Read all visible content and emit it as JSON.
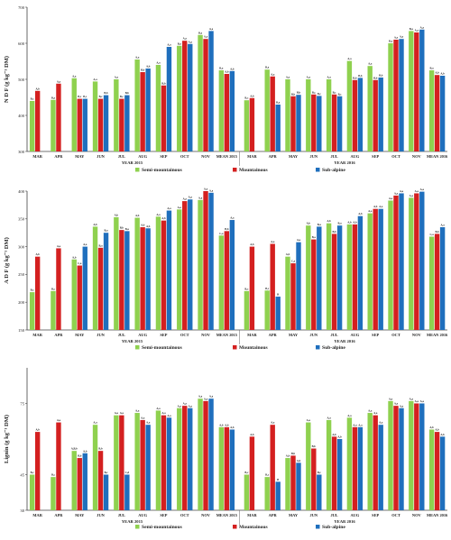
{
  "colors": {
    "semi": "#8fd14f",
    "mount": "#d42020",
    "sub": "#1f6fbd"
  },
  "legend": [
    {
      "name": "Semi-mountainous",
      "color": "#8fd14f"
    },
    {
      "name": "Mountainous",
      "color": "#d42020"
    },
    {
      "name": "Sub-alpine",
      "color": "#1f6fbd"
    }
  ],
  "chart_data": [
    {
      "type": "bar",
      "ylabel": "N D F  (g kg⁻¹ DM)",
      "ylim": [
        300,
        700
      ],
      "yticks": [
        300,
        400,
        500,
        600,
        700
      ],
      "groups": [
        {
          "label": "YEAR 2015",
          "categories": [
            "MAR",
            "APR",
            "MAY",
            "JUN",
            "JUL",
            "AUG",
            "SEP",
            "OCT",
            "NOV",
            "MEAN 2015"
          ]
        },
        {
          "label": "YEAR 2016",
          "categories": [
            "MAR",
            "APR",
            "MAY",
            "JUN",
            "JUL",
            "AUG",
            "SEP",
            "OCT",
            "NOV",
            "MEAN 2016"
          ]
        }
      ],
      "series": [
        {
          "name": "Semi-mountainous",
          "values_2015": [
            440,
            443,
            503,
            494,
            500,
            555,
            540,
            593,
            623,
            525
          ],
          "values_2016": [
            442,
            527,
            500,
            500,
            500,
            551,
            537,
            600,
            634,
            525
          ],
          "labels_2015": [
            "B,c",
            "B,a",
            "A,a",
            "A,a",
            "A,a",
            "A,a",
            "A,a",
            "B,a",
            "B,a",
            "B,a"
          ],
          "labels_2016": [
            "B,c",
            "B,a",
            "A,a",
            "A,a",
            "A,a",
            "A,a",
            "A,a",
            "B,a",
            "B,a",
            "B,a"
          ]
        },
        {
          "name": "Mountainous",
          "values_2015": [
            468,
            488,
            446,
            446,
            446,
            520,
            483,
            607,
            612,
            515
          ],
          "values_2016": [
            448,
            508,
            453,
            458,
            458,
            498,
            498,
            610,
            630,
            512
          ],
          "labels_2015": [
            "A,b",
            "A,a",
            "B,c",
            "B,c",
            "B,c",
            "B,b",
            "B,b",
            "A,a",
            "A,a",
            "A,b"
          ],
          "labels_2016": [
            "A,b",
            "A,a",
            "B,b",
            "B,c",
            "B,c",
            "B,b",
            "B,b",
            "A,a",
            "A,a",
            "A,b"
          ]
        },
        {
          "name": "Sub-alpine",
          "values_2015": [
            null,
            null,
            446,
            456,
            456,
            530,
            590,
            598,
            634,
            523
          ],
          "values_2016": [
            null,
            430,
            457,
            454,
            453,
            504,
            505,
            612,
            638,
            510
          ],
          "labels_2015": [
            "",
            "",
            "B,c",
            "B,b",
            "B,b",
            "A,b",
            "A,a",
            "A,a",
            "A,a",
            "A,b"
          ],
          "labels_2016": [
            "",
            "B,a",
            "B,b",
            "B,c",
            "B,c",
            "B,b",
            "B,b",
            "A,a",
            "A,a",
            "A,b"
          ]
        }
      ]
    },
    {
      "type": "bar",
      "ylabel": "A D F  (g kg⁻¹ DM)",
      "ylim": [
        150,
        400
      ],
      "yticks": [
        150,
        200,
        250,
        300,
        350,
        400
      ],
      "groups": [
        {
          "label": "YEAR 2015",
          "categories": [
            "MAR",
            "APR",
            "MAY",
            "JUN",
            "JUL",
            "AUG",
            "SEP",
            "OCT",
            "NOV",
            "MEAN 2015"
          ]
        },
        {
          "label": "YEAR 2016",
          "categories": [
            "MAR",
            "APR",
            "MAY",
            "JUN",
            "JUL",
            "AUG",
            "SEP",
            "OCT",
            "NOV",
            "MEAN 2016"
          ]
        }
      ],
      "series": [
        {
          "name": "Semi-mountainous",
          "values_2015": [
            218,
            220,
            277,
            336,
            353,
            352,
            354,
            367,
            384,
            320
          ],
          "values_2016": [
            220,
            221,
            282,
            338,
            342,
            340,
            360,
            383,
            388,
            318
          ],
          "labels_2015": [
            "B,c",
            "B,c",
            "A,b",
            "A,b",
            "A,b",
            "A,b",
            "A,a",
            "A,a",
            "A,a",
            "C,a"
          ],
          "labels_2016": [
            "B,c",
            "B,c",
            "A,b",
            "A,b",
            "A,b",
            "A,b",
            "A,a",
            "A,a",
            "A,a",
            "C,a"
          ]
        },
        {
          "name": "Mountainous",
          "values_2015": [
            282,
            297,
            266,
            298,
            330,
            335,
            347,
            382,
            400,
            328
          ],
          "values_2016": [
            300,
            305,
            270,
            313,
            323,
            340,
            368,
            392,
            396,
            323
          ],
          "labels_2015": [
            "A,b",
            "A,a",
            "C,a",
            "B,a",
            "B,b",
            "A,b",
            "A,b",
            "A,a",
            "A,a",
            "B,b"
          ],
          "labels_2016": [
            "A,b",
            "A,a",
            "C,a",
            "B,a",
            "B,b",
            "A,b",
            "A,b",
            "A,a",
            "A,a",
            "B,b"
          ]
        },
        {
          "name": "Sub-alpine",
          "values_2015": [
            null,
            null,
            300,
            325,
            328,
            333,
            365,
            385,
            397,
            348
          ],
          "values_2016": [
            null,
            210,
            308,
            336,
            338,
            355,
            368,
            396,
            399,
            335
          ],
          "labels_2015": [
            "",
            "",
            "A,a",
            "B,a",
            "B,a",
            "A,b",
            "A,a",
            "A,a",
            "A,a",
            "A,a"
          ],
          "labels_2016": [
            "",
            "B",
            "A,a",
            "B,a",
            "B,a",
            "A,b",
            "A,a",
            "A,a",
            "A,a",
            "A,a"
          ]
        }
      ]
    },
    {
      "type": "bar",
      "ylabel": "Lignin  (g kg⁻¹ DM)",
      "ylim": [
        30,
        90
      ],
      "yticks": [
        30,
        45,
        75
      ],
      "groups": [
        {
          "label": "YEAR 2015",
          "categories": [
            "MAR",
            "APR",
            "MAY",
            "JUN",
            "JUL",
            "AUG",
            "SEP",
            "OCT",
            "NOV",
            "MEAN 2015"
          ]
        },
        {
          "label": "YEAR 2016",
          "categories": [
            "MAR",
            "APR",
            "MAY",
            "JUN",
            "JUL",
            "AUG",
            "SEP",
            "OCT",
            "NOV",
            "MEAN 2016"
          ]
        }
      ],
      "series": [
        {
          "name": "Semi-mountainous",
          "values_2015": [
            45,
            44,
            55,
            66,
            70,
            71,
            72,
            73,
            77,
            65
          ],
          "values_2016": [
            45,
            44,
            52,
            67,
            68,
            69,
            71,
            76,
            76,
            64
          ],
          "labels_2015": [
            "B,c",
            "B,c",
            "A,B,b",
            "A,a",
            "A,a",
            "A,a",
            "A,a",
            "A,a",
            "A,a",
            "A,b"
          ],
          "labels_2016": [
            "B,c",
            "B,c",
            "A,b",
            "A,a",
            "A,a",
            "A,a",
            "A,a",
            "A,a",
            "A,a",
            "A,b"
          ]
        },
        {
          "name": "Mountainous",
          "values_2015": [
            63,
            67,
            52,
            55,
            70,
            68,
            70,
            74,
            76,
            65
          ],
          "values_2016": [
            61,
            66,
            53,
            56,
            61,
            65,
            70,
            74,
            75,
            63
          ],
          "labels_2015": [
            "A,b",
            "A,a",
            "B,b",
            "B,b",
            "A,a",
            "A,a",
            "A,a",
            "A,a",
            "A,a",
            "A,b"
          ],
          "labels_2016": [
            "A,b",
            "A,a",
            "B,b",
            "B,b",
            "A,b",
            "A,a",
            "A,a",
            "A,a",
            "A,a",
            "A,b"
          ]
        },
        {
          "name": "Sub-alpine",
          "values_2015": [
            null,
            null,
            54,
            45,
            45,
            66,
            69,
            73,
            77,
            64
          ],
          "values_2016": [
            null,
            42,
            50,
            45,
            60,
            65,
            66,
            73,
            75,
            61
          ],
          "labels_2015": [
            "",
            "",
            "A,b",
            "B,c",
            "C,d",
            "A,a",
            "A,a",
            "A,a",
            "A,a",
            "A,b"
          ],
          "labels_2016": [
            "",
            "B",
            "A,b",
            "B,c",
            "A,b",
            "A,a",
            "A,a",
            "A,a",
            "A,a",
            "A,b"
          ]
        }
      ]
    }
  ]
}
